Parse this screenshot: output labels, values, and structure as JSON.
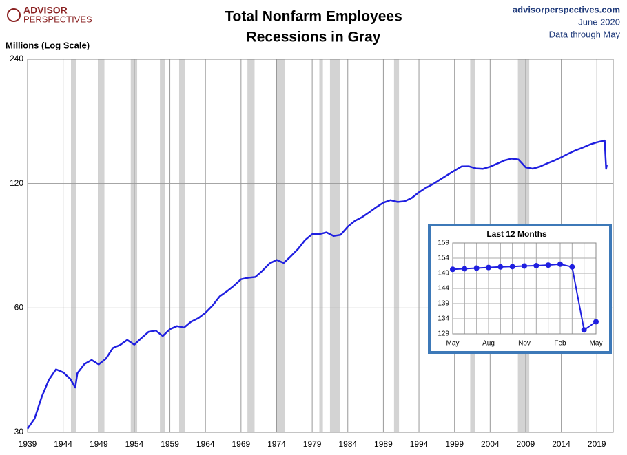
{
  "header": {
    "logo_top": "ADVISOR",
    "logo_bottom": "PERSPECTIVES",
    "site": "advisorperspectives.com",
    "date": "June 2020",
    "note": "Data through May"
  },
  "chart_data": [
    {
      "type": "line",
      "title": "Total Nonfarm Employees",
      "subtitle": "Recessions in Gray",
      "y_label": "Millions (Log Scale)",
      "log_scale": true,
      "grid": true,
      "xlim": [
        1939,
        2021.3
      ],
      "xticks": [
        1939,
        1944,
        1949,
        1954,
        1959,
        1964,
        1969,
        1974,
        1979,
        1984,
        1989,
        1994,
        1999,
        2004,
        2009,
        2014,
        2019
      ],
      "ylim": [
        30,
        240
      ],
      "yticks": [
        30,
        60,
        120,
        240
      ],
      "recession_color": "#d3d3d3",
      "recessions": [
        [
          1945.1,
          1945.8
        ],
        [
          1948.9,
          1949.8
        ],
        [
          1953.5,
          1954.4
        ],
        [
          1957.6,
          1958.3
        ],
        [
          1960.3,
          1961.1
        ],
        [
          1969.9,
          1970.9
        ],
        [
          1973.9,
          1975.2
        ],
        [
          1980.0,
          1980.5
        ],
        [
          1981.5,
          1982.9
        ],
        [
          1990.5,
          1991.2
        ],
        [
          2001.2,
          2001.9
        ],
        [
          2007.9,
          2009.5
        ]
      ],
      "x": [
        1939,
        1940,
        1941,
        1942,
        1943,
        1944,
        1945,
        1945.7,
        1946,
        1947,
        1948,
        1949,
        1950,
        1951,
        1952,
        1953,
        1954,
        1955,
        1956,
        1957,
        1958,
        1959,
        1960,
        1961,
        1962,
        1963,
        1964,
        1965,
        1966,
        1967,
        1968,
        1969,
        1970,
        1971,
        1972,
        1973,
        1974,
        1975,
        1976,
        1977,
        1978,
        1979,
        1980,
        1981,
        1982,
        1983,
        1984,
        1985,
        1986,
        1987,
        1988,
        1989,
        1990,
        1991,
        1992,
        1993,
        1994,
        1995,
        1996,
        1997,
        1998,
        1999,
        2000,
        2001,
        2002,
        2003,
        2004,
        2005,
        2006,
        2007,
        2008,
        2009,
        2010,
        2011,
        2012,
        2013,
        2014,
        2015,
        2016,
        2017,
        2018,
        2019,
        2020.1,
        2020.3,
        2020.4
      ],
      "series": [
        {
          "name": "Total Nonfarm Employees",
          "color": "#1f1fe0",
          "values": [
            30.6,
            32.4,
            36.6,
            40.2,
            42.6,
            41.9,
            40.4,
            38.5,
            41.7,
            43.9,
            44.9,
            43.8,
            45.2,
            48.0,
            48.8,
            50.2,
            48.9,
            50.7,
            52.5,
            52.9,
            51.3,
            53.3,
            54.2,
            53.8,
            55.6,
            56.7,
            58.4,
            60.8,
            64.0,
            65.8,
            67.9,
            70.4,
            71.0,
            71.3,
            73.8,
            76.9,
            78.4,
            77.1,
            80.0,
            83.3,
            87.6,
            90.5,
            90.5,
            91.4,
            89.6,
            90.2,
            94.4,
            97.5,
            99.5,
            102.2,
            105.2,
            107.9,
            109.4,
            108.3,
            108.7,
            110.8,
            114.3,
            117.3,
            119.7,
            122.8,
            125.9,
            129.0,
            132.0,
            132.1,
            130.6,
            130.3,
            131.8,
            134.1,
            136.5,
            137.9,
            137.2,
            131.3,
            130.4,
            131.9,
            134.2,
            136.4,
            138.9,
            141.8,
            144.4,
            146.6,
            149.1,
            151.0,
            152.5,
            130.3,
            133.0
          ]
        }
      ]
    },
    {
      "type": "line",
      "title": "Last 12 Months",
      "categories": [
        "May",
        null,
        null,
        "Aug",
        null,
        null,
        "Nov",
        null,
        null,
        "Feb",
        null,
        null,
        "May"
      ],
      "ylim": [
        129,
        159
      ],
      "yticks": [
        129,
        134,
        139,
        144,
        149,
        154,
        159
      ],
      "grid": true,
      "series": [
        {
          "name": "Last 12 Months",
          "color": "#1f1fe0",
          "values": [
            150.3,
            150.5,
            150.7,
            150.9,
            151.1,
            151.2,
            151.4,
            151.5,
            151.7,
            152.0,
            151.1,
            130.3,
            133.0
          ]
        }
      ]
    }
  ]
}
